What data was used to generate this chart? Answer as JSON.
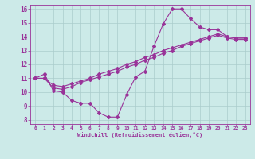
{
  "xlabel": "Windchill (Refroidissement éolien,°C)",
  "bg_color": "#cceae8",
  "grid_color": "#aacccc",
  "line_color": "#993399",
  "xlim": [
    -0.5,
    23.5
  ],
  "ylim": [
    7.7,
    16.3
  ],
  "xticks": [
    0,
    1,
    2,
    3,
    4,
    5,
    6,
    7,
    8,
    9,
    10,
    11,
    12,
    13,
    14,
    15,
    16,
    17,
    18,
    19,
    20,
    21,
    22,
    23
  ],
  "yticks": [
    8,
    9,
    10,
    11,
    12,
    13,
    14,
    15,
    16
  ],
  "line1_x": [
    0,
    1,
    2,
    3,
    4,
    5,
    6,
    7,
    8,
    9,
    10,
    11,
    12,
    13,
    14,
    15,
    16,
    17,
    18,
    19,
    20,
    21,
    22,
    23
  ],
  "line1_y": [
    11.0,
    11.3,
    10.1,
    10.0,
    9.4,
    9.2,
    9.2,
    8.5,
    8.2,
    8.2,
    9.8,
    11.1,
    11.5,
    13.3,
    14.9,
    16.0,
    16.0,
    15.3,
    14.7,
    14.5,
    14.5,
    14.0,
    13.9,
    13.9
  ],
  "line2_x": [
    0,
    1,
    2,
    3,
    4,
    5,
    6,
    7,
    8,
    9,
    10,
    11,
    12,
    13,
    14,
    15,
    16,
    17,
    18,
    19,
    20,
    21,
    22,
    23
  ],
  "line2_y": [
    11.0,
    11.0,
    10.5,
    10.4,
    10.6,
    10.8,
    11.0,
    11.3,
    11.5,
    11.7,
    12.0,
    12.2,
    12.5,
    12.7,
    13.0,
    13.2,
    13.4,
    13.6,
    13.8,
    14.0,
    14.2,
    14.0,
    13.9,
    13.9
  ],
  "line3_x": [
    0,
    1,
    2,
    3,
    4,
    5,
    6,
    7,
    8,
    9,
    10,
    11,
    12,
    13,
    14,
    15,
    16,
    17,
    18,
    19,
    20,
    21,
    22,
    23
  ],
  "line3_y": [
    11.0,
    11.0,
    10.3,
    10.2,
    10.4,
    10.7,
    10.9,
    11.1,
    11.3,
    11.5,
    11.8,
    12.0,
    12.3,
    12.5,
    12.8,
    13.0,
    13.3,
    13.5,
    13.7,
    13.9,
    14.1,
    13.9,
    13.8,
    13.8
  ]
}
